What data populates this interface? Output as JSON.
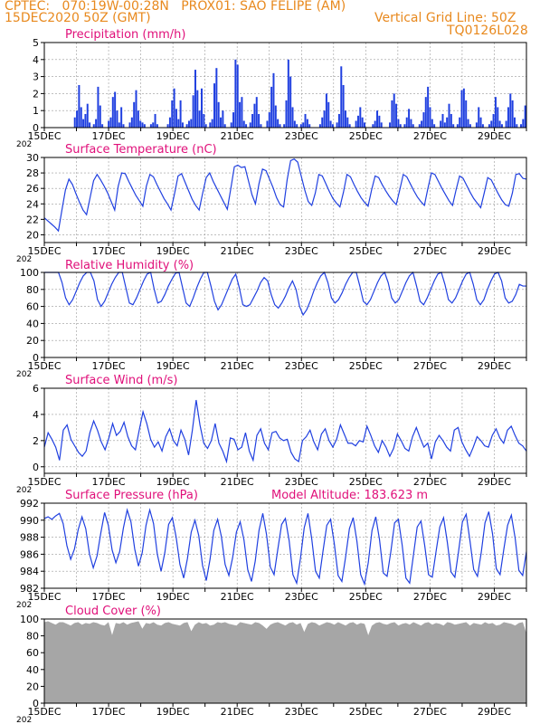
{
  "header": {
    "line1": "CPTEC:   070:19W-00:28N   PROX01: SAO FELIPE (AM)",
    "line2": "15DEC2020 50Z (GMT)",
    "right1": "Vertical Grid Line: 50Z",
    "right2": "TQ0126L028"
  },
  "colors": {
    "header": "#e8891e",
    "title": "#e0107a",
    "series": "#2040e0",
    "cloud": "#a6a6a6",
    "frame": "#000000"
  },
  "x_axis": {
    "days_span": 15,
    "tick_labels": [
      "15DEC",
      "17DEC",
      "19DEC",
      "21DEC",
      "23DEC",
      "25DEC",
      "27DEC",
      "29DEC"
    ],
    "tick_days": [
      0,
      2,
      4,
      6,
      8,
      10,
      12,
      14
    ],
    "year_label": "202"
  },
  "chart_data": [
    {
      "id": "precip",
      "type": "bar",
      "title": "Precipitation (mm/h)",
      "ylim": [
        0,
        5
      ],
      "yticks": [
        0,
        1,
        2,
        3,
        4,
        5
      ],
      "grid": true,
      "values": [
        0,
        0,
        0,
        0,
        0,
        0,
        0,
        0,
        0,
        0,
        0,
        0,
        0,
        0,
        0.6,
        1.0,
        2.5,
        1.2,
        0.5,
        0.8,
        1.4,
        0.3,
        0,
        0.2,
        0.5,
        2.4,
        1.3,
        0.2,
        0,
        0,
        0.4,
        0.6,
        1.8,
        2.1,
        1.0,
        0.3,
        1.2,
        0.2,
        0,
        0,
        0.3,
        0.6,
        1.5,
        2.2,
        1.0,
        0.4,
        0.3,
        0.2,
        0,
        0,
        0.2,
        0.3,
        0.8,
        0.2,
        0,
        0,
        0,
        0,
        0.2,
        0.6,
        1.6,
        2.3,
        1.1,
        0.5,
        1.6,
        0.3,
        0,
        0.2,
        0.4,
        0.5,
        1.9,
        3.4,
        2.2,
        1.0,
        2.3,
        0.8,
        0.2,
        0,
        0.3,
        0.5,
        2.6,
        3.5,
        1.5,
        0.6,
        1.0,
        0.2,
        0,
        0,
        0.3,
        0.9,
        4.0,
        3.7,
        1.5,
        1.8,
        0.4,
        0.2,
        0,
        0.3,
        0.8,
        1.4,
        1.8,
        0.8,
        0.2,
        0,
        0,
        0.4,
        0.9,
        2.4,
        3.2,
        1.3,
        0.5,
        0.2,
        0,
        0.2,
        1.6,
        4.0,
        3.0,
        1.2,
        0.4,
        0.2,
        0,
        0.2,
        0.3,
        0.8,
        0.5,
        0.2,
        0,
        0,
        0,
        0,
        0.2,
        0.6,
        1.0,
        2.0,
        1.5,
        0.4,
        0.2,
        0,
        0.3,
        0.8,
        3.6,
        2.5,
        1.0,
        0.6,
        0.2,
        0,
        0,
        0.4,
        0.7,
        1.2,
        0.6,
        0.3,
        0,
        0,
        0,
        0.2,
        0.4,
        1.0,
        0.7,
        0.3,
        0,
        0,
        0,
        0.3,
        1.6,
        2.0,
        1.4,
        0.5,
        0.2,
        0,
        0.2,
        0.6,
        1.1,
        0.5,
        0.2,
        0,
        0,
        0.2,
        0.4,
        0.9,
        1.8,
        2.4,
        1.2,
        0.5,
        0.2,
        0,
        0,
        0.4,
        0.8,
        0.3,
        0.6,
        1.4,
        0.8,
        0.2,
        0,
        0.2,
        0.6,
        2.2,
        2.3,
        1.6,
        0.5,
        0.2,
        0,
        0,
        0.3,
        1.2,
        0.6,
        0.2,
        0,
        0,
        0.2,
        0.4,
        0.8,
        1.8,
        1.2,
        0.4,
        0.2,
        0,
        0.4,
        1.2,
        2.0,
        1.6,
        0.6,
        0.2,
        0,
        0.2,
        0.5,
        1.3
      ]
    },
    {
      "id": "temp",
      "type": "line",
      "title": "Surface Temperature (nC)",
      "ylim": [
        19,
        30
      ],
      "yticks": [
        20,
        22,
        24,
        26,
        28,
        30
      ],
      "grid": true,
      "values": [
        22.2,
        21.8,
        21.4,
        21,
        20.5,
        23.2,
        25.8,
        27.2,
        26.5,
        25.3,
        24.2,
        23.2,
        22.6,
        24.8,
        27,
        27.8,
        27.1,
        26.3,
        25.4,
        24.3,
        23.2,
        26.3,
        28,
        27.9,
        26.9,
        26,
        25.1,
        24.4,
        23.7,
        26.3,
        27.8,
        27.5,
        26.5,
        25.6,
        24.7,
        24,
        23.2,
        25.3,
        27.6,
        27.9,
        26.8,
        25.7,
        24.6,
        23.8,
        23.2,
        25.4,
        27.4,
        28,
        26.9,
        26,
        25.1,
        24.2,
        23.3,
        26,
        28.8,
        29,
        28.7,
        28.8,
        27,
        25.2,
        24,
        26.6,
        28.5,
        28.3,
        27.2,
        26.1,
        24.8,
        23.9,
        23.6,
        27.1,
        29.6,
        29.8,
        29.4,
        27.6,
        25.8,
        24.3,
        23.8,
        25.4,
        27.8,
        27.6,
        26.6,
        25.6,
        24.7,
        24.1,
        23.6,
        25.5,
        27.8,
        27.5,
        26.5,
        25.6,
        24.8,
        24.2,
        23.7,
        25.8,
        27.6,
        27.4,
        26.5,
        25.7,
        25,
        24.4,
        23.9,
        25.8,
        27.8,
        27.5,
        26.6,
        25.7,
        24.9,
        24.3,
        23.8,
        26,
        28,
        27.8,
        26.9,
        26,
        25.2,
        24.4,
        23.8,
        25.8,
        27.6,
        27.3,
        26.4,
        25.5,
        24.7,
        24.1,
        23.5,
        25.4,
        27.4,
        27.1,
        26.2,
        25.3,
        24.5,
        23.9,
        23.7,
        25.4,
        27.8,
        27.9,
        27.3,
        27.2
      ]
    },
    {
      "id": "rh",
      "type": "line",
      "title": "Relative Humidity (%)",
      "ylim": [
        0,
        100
      ],
      "yticks": [
        0,
        20,
        40,
        60,
        80,
        100
      ],
      "grid": true,
      "values": [
        100,
        100,
        100,
        100,
        100,
        88,
        70,
        62,
        68,
        78,
        88,
        96,
        100,
        100,
        90,
        68,
        60,
        66,
        76,
        86,
        94,
        100,
        100,
        82,
        64,
        62,
        70,
        80,
        90,
        98,
        100,
        80,
        64,
        66,
        74,
        84,
        92,
        99,
        100,
        82,
        64,
        60,
        70,
        82,
        92,
        100,
        100,
        84,
        66,
        56,
        62,
        72,
        82,
        92,
        98,
        82,
        62,
        60,
        62,
        70,
        78,
        88,
        94,
        90,
        74,
        62,
        58,
        64,
        72,
        82,
        90,
        80,
        60,
        50,
        56,
        66,
        78,
        88,
        96,
        100,
        88,
        70,
        64,
        68,
        76,
        86,
        94,
        100,
        100,
        84,
        66,
        62,
        68,
        78,
        88,
        96,
        100,
        88,
        70,
        64,
        68,
        78,
        88,
        96,
        100,
        84,
        66,
        62,
        70,
        80,
        90,
        98,
        100,
        86,
        68,
        64,
        70,
        80,
        90,
        98,
        100,
        86,
        68,
        62,
        68,
        80,
        90,
        98,
        100,
        90,
        70,
        64,
        66,
        74,
        86,
        84,
        84
      ]
    },
    {
      "id": "wind",
      "type": "line",
      "title": "Surface Wind (m/s)",
      "ylim": [
        -0.5,
        6
      ],
      "yticks": [
        0,
        2,
        4,
        6
      ],
      "grid": true,
      "values": [
        1.5,
        2.6,
        2.1,
        1.5,
        0.5,
        2.8,
        3.2,
        2.1,
        1.6,
        1.1,
        0.8,
        1.2,
        2.6,
        3.5,
        2.8,
        1.9,
        1.3,
        2.2,
        3.3,
        2.4,
        2.7,
        3.4,
        2.3,
        1.6,
        1.3,
        2.8,
        4.2,
        3.3,
        2.1,
        1.5,
        1.9,
        1.2,
        2.3,
        2.9,
        2.0,
        1.6,
        2.8,
        2.1,
        0.9,
        2.8,
        5.1,
        3.2,
        1.8,
        1.4,
        2.0,
        3.3,
        1.8,
        1.2,
        0.4,
        2.2,
        2.1,
        1.3,
        1.5,
        2.6,
        1.2,
        0.5,
        2.4,
        2.9,
        1.8,
        1.3,
        2.6,
        2.7,
        2.2,
        2.0,
        2.1,
        1.1,
        0.6,
        0.4,
        2.0,
        2.3,
        2.8,
        1.9,
        1.3,
        2.5,
        2.9,
        2.0,
        1.5,
        2.1,
        3.2,
        2.5,
        1.8,
        1.8,
        1.6,
        2.0,
        1.9,
        3.1,
        2.4,
        1.6,
        1.1,
        2.0,
        1.5,
        0.8,
        1.4,
        2.5,
        2.0,
        1.4,
        1.2,
        2.3,
        3.0,
        2.2,
        1.5,
        1.8,
        0.6,
        1.9,
        2.4,
        2.0,
        1.5,
        1.2,
        2.8,
        3.0,
        1.9,
        1.3,
        0.8,
        1.5,
        2.3,
        2.0,
        1.6,
        1.5,
        2.4,
        2.9,
        2.2,
        1.8,
        2.8,
        3.1,
        2.4,
        1.8,
        1.6,
        1.2
      ]
    },
    {
      "id": "press",
      "type": "line",
      "title": "Surface Pressure (hPa)",
      "ylim": [
        982,
        992
      ],
      "yticks": [
        982,
        984,
        986,
        988,
        990,
        992
      ],
      "grid": true,
      "note": "Model Altitude: 183.623  m",
      "values": [
        990.2,
        990.4,
        990.1,
        990.5,
        990.8,
        989.6,
        987.0,
        985.4,
        986.6,
        988.9,
        990.4,
        989.0,
        986.0,
        984.4,
        985.8,
        988.5,
        990.9,
        989.4,
        986.5,
        985.0,
        986.3,
        989.1,
        991.2,
        989.8,
        986.6,
        984.6,
        986.2,
        989.4,
        991.2,
        989.6,
        986.0,
        984.0,
        986.2,
        989.5,
        990.3,
        988.0,
        984.8,
        983.2,
        985.5,
        988.6,
        990.0,
        988.2,
        984.7,
        982.9,
        985.4,
        988.8,
        990.1,
        988.1,
        984.8,
        983.5,
        985.6,
        988.6,
        989.8,
        987.7,
        984.2,
        982.8,
        985.2,
        988.8,
        990.8,
        988.3,
        984.5,
        983.6,
        986.6,
        989.5,
        990.2,
        987.6,
        983.6,
        982.6,
        985.5,
        989.1,
        990.8,
        987.8,
        984.0,
        983.2,
        986.4,
        989.4,
        990.1,
        987.2,
        983.5,
        982.8,
        985.7,
        989.0,
        990.3,
        987.5,
        983.6,
        982.5,
        985.0,
        988.8,
        990.4,
        987.7,
        983.8,
        983.4,
        986.3,
        989.7,
        990.1,
        987.1,
        983.2,
        982.6,
        985.9,
        989.2,
        989.9,
        987.0,
        983.6,
        983.3,
        986.3,
        989.2,
        990.3,
        987.4,
        983.9,
        983.3,
        986.4,
        989.8,
        990.7,
        987.6,
        984.2,
        983.4,
        986.2,
        989.7,
        991.0,
        988.4,
        984.3,
        983.6,
        986.6,
        989.4,
        990.6,
        987.9,
        984.1,
        983.5,
        986.3
      ]
    },
    {
      "id": "cloud",
      "type": "area",
      "title": "Cloud Cover (%)",
      "ylim": [
        0,
        100
      ],
      "yticks": [
        0,
        20,
        40,
        60,
        80,
        100
      ],
      "grid": false,
      "values": [
        96,
        97,
        95,
        93,
        96,
        96,
        94,
        92,
        95,
        96,
        93,
        95,
        94,
        96,
        95,
        93,
        92,
        96,
        80,
        95,
        94,
        96,
        93,
        95,
        96,
        97,
        88,
        95,
        94,
        96,
        93,
        92,
        95,
        96,
        94,
        93,
        92,
        95,
        96,
        85,
        93,
        96,
        94,
        95,
        92,
        93,
        96,
        95,
        96,
        94,
        93,
        92,
        96,
        95,
        94,
        93,
        96,
        95,
        92,
        88,
        93,
        95,
        96,
        94,
        92,
        95,
        96,
        93,
        95,
        84,
        94,
        96,
        95,
        92,
        94,
        96,
        95,
        93,
        96,
        94,
        92,
        95,
        96,
        93,
        95,
        94,
        80,
        92,
        95,
        96,
        94,
        93,
        95,
        96,
        92,
        94,
        95,
        93,
        96,
        94,
        92,
        95,
        96,
        93,
        95,
        94,
        92,
        96,
        95,
        93,
        94,
        95,
        96,
        92,
        95,
        94,
        93,
        96,
        94,
        95,
        92,
        93,
        96,
        95,
        94,
        92,
        95,
        96,
        82
      ]
    }
  ]
}
